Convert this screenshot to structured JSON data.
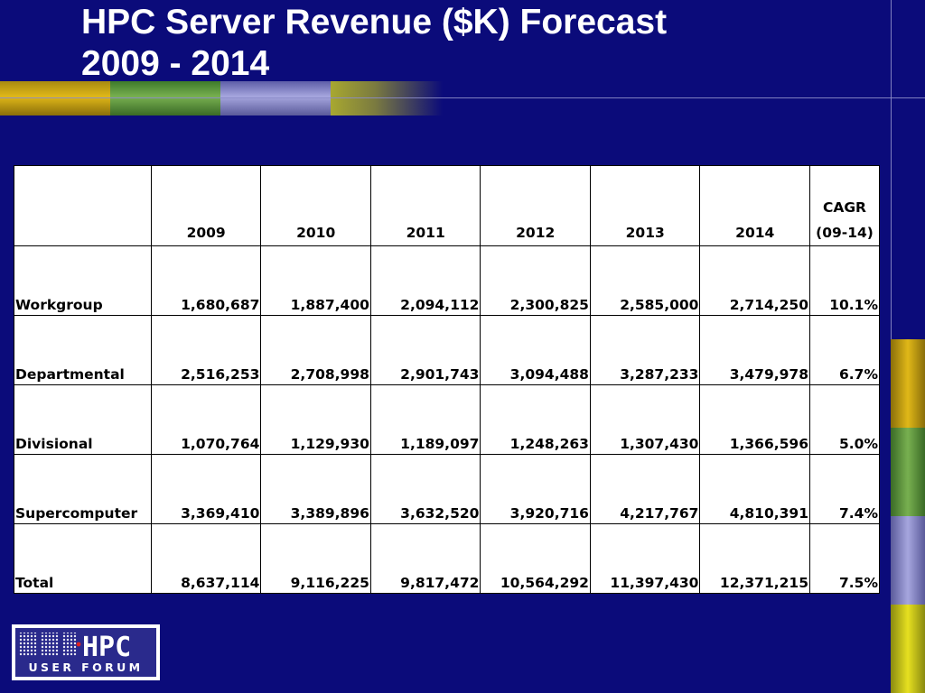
{
  "slide": {
    "title_line1": "HPC Server Revenue ($K) Forecast",
    "title_line2": "2009 - 2014"
  },
  "table": {
    "columns": [
      "",
      "2009",
      "2010",
      "2011",
      "2012",
      "2013",
      "2014",
      "CAGR\n(09-14)"
    ],
    "rows": [
      {
        "label": "Workgroup",
        "values": [
          "1,680,687",
          "1,887,400",
          "2,094,112",
          "2,300,825",
          "2,585,000",
          "2,714,250",
          "10.1%"
        ]
      },
      {
        "label": "Departmental",
        "values": [
          "2,516,253",
          "2,708,998",
          "2,901,743",
          "3,094,488",
          "3,287,233",
          "3,479,978",
          "6.7%"
        ]
      },
      {
        "label": "Divisional",
        "values": [
          "1,070,764",
          "1,129,930",
          "1,189,097",
          "1,248,263",
          "1,307,430",
          "1,366,596",
          "5.0%"
        ]
      },
      {
        "label": "Supercomputer",
        "values": [
          "3,369,410",
          "3,389,896",
          "3,632,520",
          "3,920,716",
          "4,217,767",
          "4,810,391",
          "7.4%"
        ]
      },
      {
        "label": "Total",
        "values": [
          "8,637,114",
          "9,116,225",
          "9,817,472",
          "10,564,292",
          "11,397,430",
          "12,371,215",
          "7.5%"
        ]
      }
    ]
  },
  "logo": {
    "main": "HPC",
    "sub": "USER FORUM"
  },
  "colors": {
    "background": "#0b0b7a",
    "band_gold": "#c8a010",
    "band_green": "#5a9a3a",
    "band_lavender": "#8a8ac8",
    "band_olive": "#a8a830"
  }
}
